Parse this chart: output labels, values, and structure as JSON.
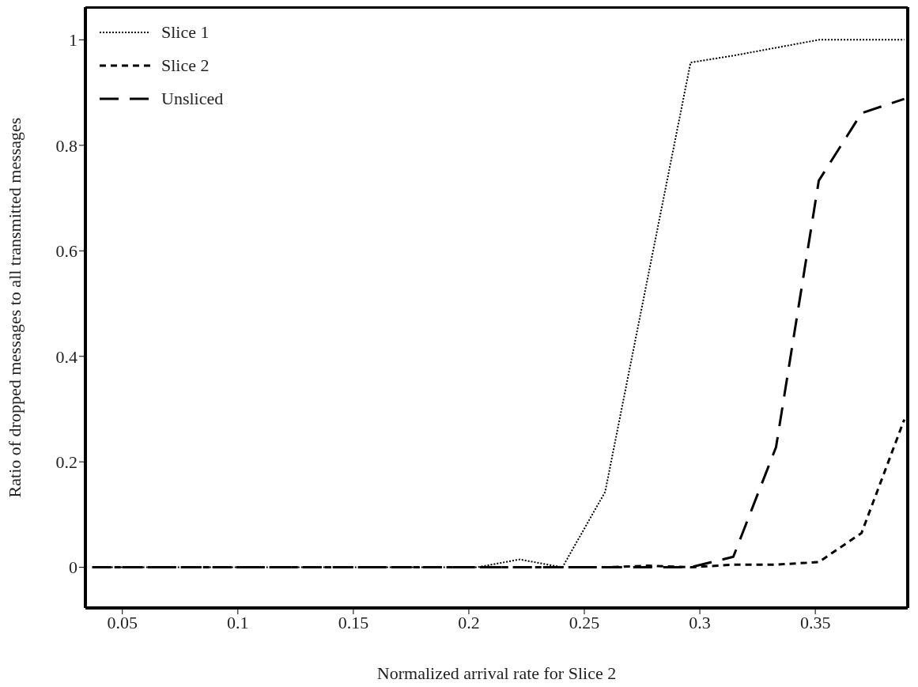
{
  "chart_data": {
    "type": "line",
    "xlabel": "Normalized arrival rate for Slice 2",
    "ylabel": "Ratio of dropped messages to all transmitted messages",
    "x": [
      0.037,
      0.0555,
      0.074,
      0.0925,
      0.111,
      0.1295,
      0.148,
      0.1665,
      0.185,
      0.2035,
      0.222,
      0.2405,
      0.259,
      0.2775,
      0.296,
      0.3145,
      0.333,
      0.3515,
      0.37,
      0.3885
    ],
    "series": [
      {
        "name": "Slice 1",
        "color": "#000000",
        "line_style": "dotted",
        "values": [
          0,
          0,
          0,
          0,
          0,
          0,
          0,
          0,
          0,
          0,
          0.015,
          0,
          0.143,
          0.55,
          0.957,
          0.97,
          0.985,
          1.0,
          1.0,
          1.0
        ]
      },
      {
        "name": "Slice 2",
        "color": "#000000",
        "line_style": "dashed",
        "values": [
          0,
          0,
          0,
          0,
          0,
          0,
          0,
          0,
          0,
          0,
          0,
          0,
          0,
          0.003,
          0,
          0.005,
          0.005,
          0.01,
          0.065,
          0.28
        ]
      },
      {
        "name": "Unsliced",
        "color": "#000000",
        "line_style": "dashed",
        "values": [
          0,
          0,
          0,
          0,
          0,
          0,
          0,
          0,
          0,
          0,
          0,
          0,
          0,
          0,
          0,
          0.02,
          0.228,
          0.733,
          0.861,
          0.888
        ]
      }
    ],
    "xlim": [
      0.034,
      0.39
    ],
    "xticks": [
      0.05,
      0.1,
      0.15,
      0.2,
      0.25,
      0.3,
      0.35
    ],
    "ylim": [
      -0.077,
      1.062
    ],
    "yticks": [
      0,
      0.2,
      0.4,
      0.6,
      0.8,
      1
    ],
    "grid": false,
    "legend": "top left",
    "marker": "none"
  }
}
